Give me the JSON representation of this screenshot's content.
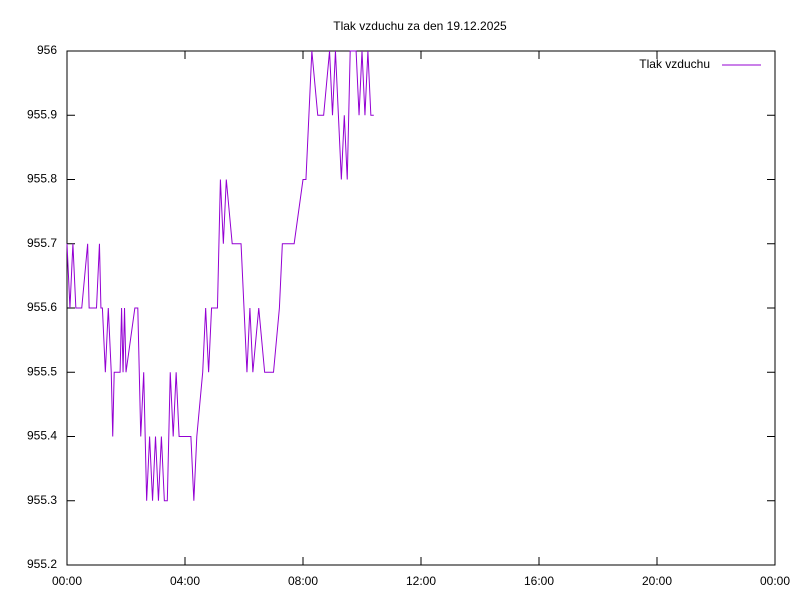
{
  "chart_data": {
    "type": "line",
    "title": "Tlak vzduchu za den 19.12.2025",
    "x": [
      0,
      0.1,
      0.2,
      0.3,
      0.4,
      0.5,
      0.7,
      0.75,
      0.8,
      1.0,
      1.1,
      1.15,
      1.2,
      1.3,
      1.4,
      1.5,
      1.55,
      1.6,
      1.8,
      1.85,
      1.9,
      1.95,
      2.0,
      2.3,
      2.4,
      2.5,
      2.6,
      2.7,
      2.8,
      2.9,
      3.0,
      3.1,
      3.2,
      3.3,
      3.4,
      3.5,
      3.6,
      3.7,
      3.8,
      4.0,
      4.2,
      4.3,
      4.4,
      4.6,
      4.7,
      4.8,
      4.9,
      5.1,
      5.2,
      5.3,
      5.4,
      5.6,
      5.9,
      6.0,
      6.1,
      6.2,
      6.3,
      6.5,
      6.7,
      7.0,
      7.2,
      7.3,
      7.5,
      7.7,
      8.0,
      8.1,
      8.2,
      8.3,
      8.5,
      8.7,
      8.9,
      9.0,
      9.1,
      9.2,
      9.3,
      9.4,
      9.5,
      9.6,
      9.8,
      9.9,
      10.0,
      10.1,
      10.2,
      10.3,
      10.4
    ],
    "series": [
      {
        "name": "Tlak vzduchu",
        "color": "#9400d3",
        "values": [
          955.7,
          955.6,
          955.7,
          955.6,
          955.6,
          955.6,
          955.7,
          955.6,
          955.6,
          955.6,
          955.7,
          955.6,
          955.6,
          955.5,
          955.6,
          955.5,
          955.4,
          955.5,
          955.5,
          955.6,
          955.5,
          955.6,
          955.5,
          955.6,
          955.6,
          955.4,
          955.5,
          955.3,
          955.4,
          955.3,
          955.4,
          955.3,
          955.4,
          955.3,
          955.3,
          955.5,
          955.4,
          955.5,
          955.4,
          955.4,
          955.4,
          955.3,
          955.4,
          955.5,
          955.6,
          955.5,
          955.6,
          955.6,
          955.8,
          955.7,
          955.8,
          955.7,
          955.7,
          955.6,
          955.5,
          955.6,
          955.5,
          955.6,
          955.5,
          955.5,
          955.6,
          955.7,
          955.7,
          955.7,
          955.8,
          955.8,
          955.9,
          956,
          955.9,
          955.9,
          956,
          955.9,
          956,
          955.9,
          955.8,
          955.9,
          955.8,
          956,
          956,
          955.9,
          956,
          955.9,
          956,
          955.9,
          955.9
        ]
      }
    ],
    "xlim": [
      0,
      24
    ],
    "xticks": [
      {
        "value": 0,
        "label": "00:00"
      },
      {
        "value": 4,
        "label": "04:00"
      },
      {
        "value": 8,
        "label": "08:00"
      },
      {
        "value": 12,
        "label": "12:00"
      },
      {
        "value": 16,
        "label": "16:00"
      },
      {
        "value": 20,
        "label": "20:00"
      },
      {
        "value": 24,
        "label": "00:00"
      }
    ],
    "ylim": [
      955.2,
      956
    ],
    "yticks": [
      955.2,
      955.3,
      955.4,
      955.5,
      955.6,
      955.7,
      955.8,
      955.9,
      956
    ],
    "legend": "top-right"
  }
}
